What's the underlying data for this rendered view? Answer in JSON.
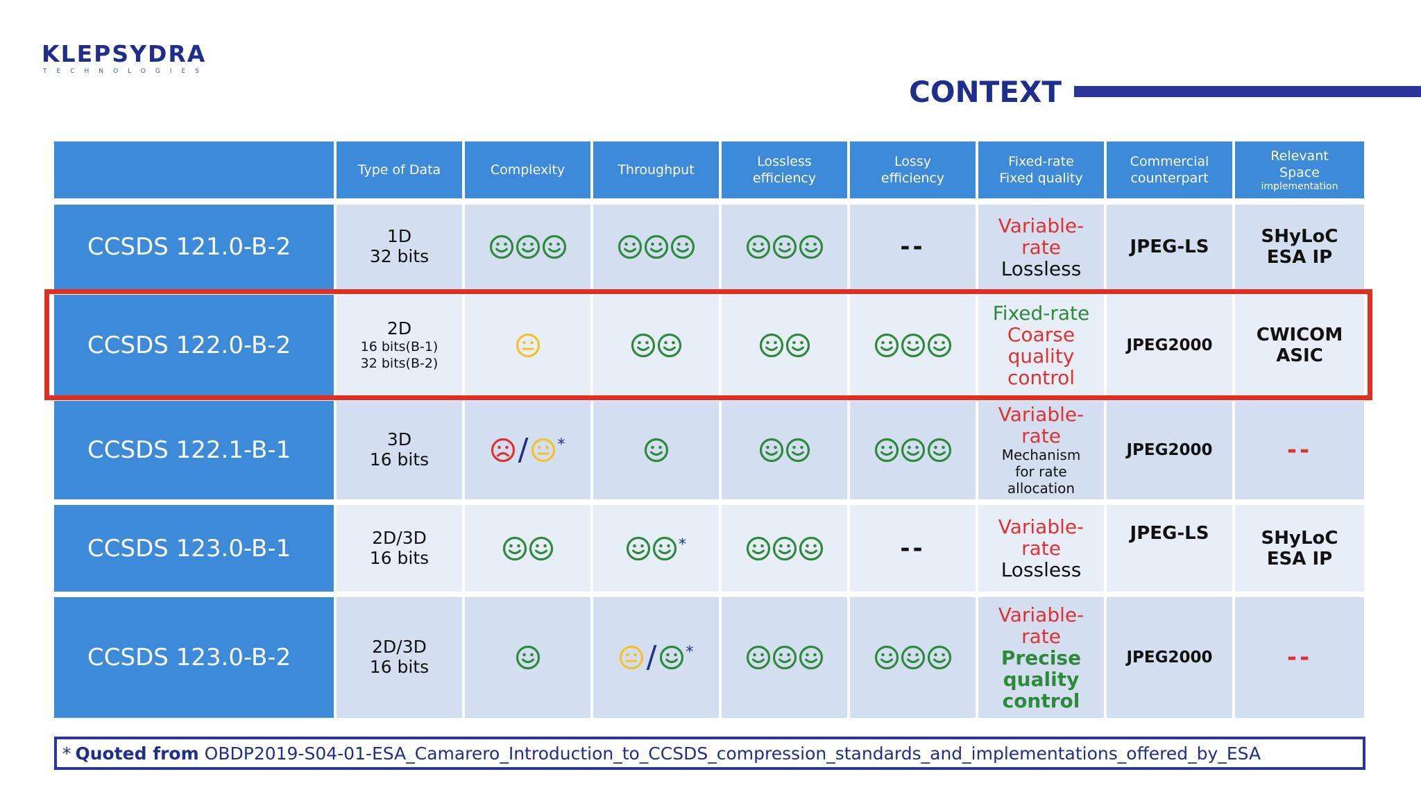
{
  "logo": {
    "main": "KLEPSYDRA",
    "sub": "TECHNOLOGIES"
  },
  "title": "CONTEXT",
  "colors": {
    "header_blue": "#3d8ad8",
    "accent_navy": "#1f2d8c",
    "highlight_red": "#e02e1f",
    "good_green": "#2c8a3a",
    "neutral_yellow": "#f2c029",
    "bad_red": "#e03131"
  },
  "table": {
    "headers": {
      "type_of_data": "Type of Data",
      "complexity": "Complexity",
      "throughput": "Throughput",
      "lossless_1": "Lossless",
      "lossless_2": "efficiency",
      "lossy_1": "Lossy",
      "lossy_2": "efficiency",
      "fixed_1": "Fixed-rate",
      "fixed_2": "Fixed quality",
      "commercial_1": "Commercial",
      "commercial_2": "counterpart",
      "relevant_1": "Relevant",
      "relevant_2": "Space",
      "relevant_3": "implementation"
    },
    "rows": [
      {
        "name": "CCSDS 121.0-B-2",
        "type_1": "1D",
        "type_2": "32 bits",
        "complexity": "3 happy",
        "throughput": "3 happy",
        "lossless": "3 happy",
        "lossy": "--",
        "fixed_1": "Variable-",
        "fixed_2": "rate",
        "fixed_3": "Lossless",
        "commercial": "JPEG-LS",
        "relevant_1": "SHyLoC",
        "relevant_2": "ESA IP"
      },
      {
        "name": "CCSDS 122.0-B-2",
        "type_1": "2D",
        "type_2": "16 bits(B-1)",
        "type_3": "32 bits(B-2)",
        "complexity": "1 neutral",
        "throughput": "2 happy",
        "lossless": "2 happy",
        "lossy": "3 happy",
        "fixed_1": "Fixed-rate",
        "fixed_2": "Coarse",
        "fixed_3": "quality",
        "fixed_4": "control",
        "commercial": "JPEG2000",
        "relevant_1": "CWICOM",
        "relevant_2": "ASIC"
      },
      {
        "name": "CCSDS 122.1-B-1",
        "type_1": "3D",
        "type_2": "16 bits",
        "complexity": "sad / neutral *",
        "throughput": "1 happy",
        "lossless": "2 happy",
        "lossy": "3 happy",
        "fixed_1": "Variable-",
        "fixed_2": "rate",
        "fixed_3": "Mechanism",
        "fixed_4": "for rate",
        "fixed_5": "allocation",
        "commercial": "JPEG2000",
        "relevant": "--"
      },
      {
        "name": "CCSDS 123.0-B-1",
        "type_1": "2D/3D",
        "type_2": "16 bits",
        "complexity": "2 happy",
        "throughput": "2 happy *",
        "lossless": "3 happy",
        "lossy": "--",
        "fixed_1": "Variable-",
        "fixed_2": "rate",
        "fixed_3": "Lossless",
        "commercial": "JPEG-LS",
        "relevant_1": "SHyLoC",
        "relevant_2": "ESA IP"
      },
      {
        "name": "CCSDS 123.0-B-2",
        "type_1": "2D/3D",
        "type_2": "16 bits",
        "complexity": "1 happy",
        "throughput": "neutral / happy *",
        "lossless": "3 happy",
        "lossy": "3 happy",
        "fixed_1": "Variable-",
        "fixed_2": "rate",
        "fixed_3": "Precise",
        "fixed_4": "quality",
        "fixed_5": "control",
        "commercial": "JPEG2000",
        "relevant": "--"
      }
    ]
  },
  "footnote": {
    "star": "*",
    "bold": "Quoted from",
    "text": "OBDP2019-S04-01-ESA_Camarero_Introduction_to_CCSDS_compression_standards_and_implementations_offered_by_ESA"
  }
}
